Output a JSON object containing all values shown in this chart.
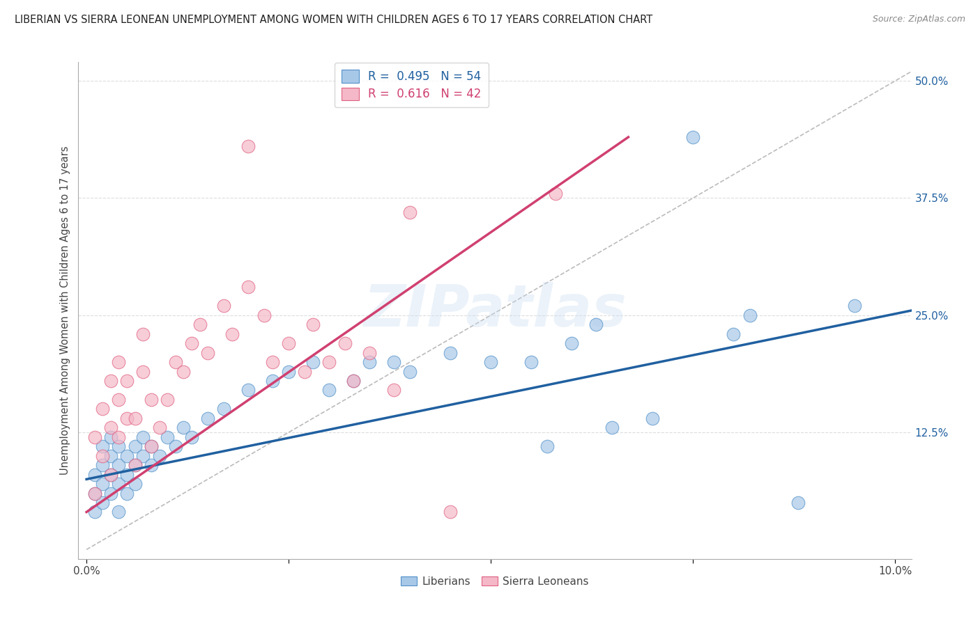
{
  "title": "LIBERIAN VS SIERRA LEONEAN UNEMPLOYMENT AMONG WOMEN WITH CHILDREN AGES 6 TO 17 YEARS CORRELATION CHART",
  "source": "Source: ZipAtlas.com",
  "ylabel": "Unemployment Among Women with Children Ages 6 to 17 years",
  "xlim": [
    -0.001,
    0.102
  ],
  "ylim": [
    -0.01,
    0.52
  ],
  "xticks": [
    0.0,
    0.025,
    0.05,
    0.075,
    0.1
  ],
  "xticklabels": [
    "0.0%",
    "",
    "",
    "",
    "10.0%"
  ],
  "yticks": [
    0.0,
    0.125,
    0.25,
    0.375,
    0.5
  ],
  "yticklabels": [
    "",
    "12.5%",
    "25.0%",
    "37.5%",
    "50.0%"
  ],
  "blue_R": 0.495,
  "blue_N": 54,
  "pink_R": 0.616,
  "pink_N": 42,
  "blue_fill_color": "#A8C8E8",
  "pink_fill_color": "#F4B8C8",
  "blue_edge_color": "#5090C8",
  "pink_edge_color": "#E06080",
  "blue_line_color": "#2060A0",
  "pink_line_color": "#D04070",
  "legend_label_blue": "Liberians",
  "legend_label_pink": "Sierra Leoneans",
  "watermark": "ZIPatlas",
  "blue_scatter_x": [
    0.001,
    0.001,
    0.001,
    0.002,
    0.002,
    0.002,
    0.002,
    0.003,
    0.003,
    0.003,
    0.003,
    0.004,
    0.004,
    0.004,
    0.004,
    0.005,
    0.005,
    0.005,
    0.006,
    0.006,
    0.006,
    0.007,
    0.007,
    0.008,
    0.008,
    0.009,
    0.01,
    0.011,
    0.012,
    0.013,
    0.015,
    0.017,
    0.02,
    0.023,
    0.025,
    0.028,
    0.03,
    0.033,
    0.035,
    0.038,
    0.04,
    0.045,
    0.05,
    0.055,
    0.057,
    0.06,
    0.063,
    0.065,
    0.07,
    0.075,
    0.08,
    0.082,
    0.088,
    0.095
  ],
  "blue_scatter_y": [
    0.04,
    0.06,
    0.08,
    0.05,
    0.07,
    0.09,
    0.11,
    0.06,
    0.08,
    0.1,
    0.12,
    0.07,
    0.09,
    0.11,
    0.04,
    0.08,
    0.1,
    0.06,
    0.09,
    0.11,
    0.07,
    0.1,
    0.12,
    0.09,
    0.11,
    0.1,
    0.12,
    0.11,
    0.13,
    0.12,
    0.14,
    0.15,
    0.17,
    0.18,
    0.19,
    0.2,
    0.17,
    0.18,
    0.2,
    0.2,
    0.19,
    0.21,
    0.2,
    0.2,
    0.11,
    0.22,
    0.24,
    0.13,
    0.14,
    0.44,
    0.23,
    0.25,
    0.05,
    0.26
  ],
  "pink_scatter_x": [
    0.001,
    0.001,
    0.002,
    0.002,
    0.003,
    0.003,
    0.003,
    0.004,
    0.004,
    0.004,
    0.005,
    0.005,
    0.006,
    0.006,
    0.007,
    0.007,
    0.008,
    0.008,
    0.009,
    0.01,
    0.011,
    0.012,
    0.013,
    0.014,
    0.015,
    0.017,
    0.018,
    0.02,
    0.022,
    0.023,
    0.025,
    0.027,
    0.028,
    0.03,
    0.032,
    0.033,
    0.035,
    0.038,
    0.04,
    0.045,
    0.058,
    0.02
  ],
  "pink_scatter_y": [
    0.06,
    0.12,
    0.1,
    0.15,
    0.08,
    0.13,
    0.18,
    0.12,
    0.16,
    0.2,
    0.14,
    0.18,
    0.09,
    0.14,
    0.19,
    0.23,
    0.11,
    0.16,
    0.13,
    0.16,
    0.2,
    0.19,
    0.22,
    0.24,
    0.21,
    0.26,
    0.23,
    0.28,
    0.25,
    0.2,
    0.22,
    0.19,
    0.24,
    0.2,
    0.22,
    0.18,
    0.21,
    0.17,
    0.36,
    0.04,
    0.38,
    0.43
  ],
  "blue_line_x": [
    0.0,
    0.102
  ],
  "blue_line_y": [
    0.075,
    0.255
  ],
  "pink_line_x": [
    0.0,
    0.067
  ],
  "pink_line_y": [
    0.04,
    0.44
  ],
  "diag_line_x": [
    0.0,
    0.102
  ],
  "diag_line_y": [
    0.0,
    0.51
  ],
  "background_color": "#FFFFFF",
  "grid_color": "#CCCCCC",
  "grid_dash_color": "#DDDDDD"
}
